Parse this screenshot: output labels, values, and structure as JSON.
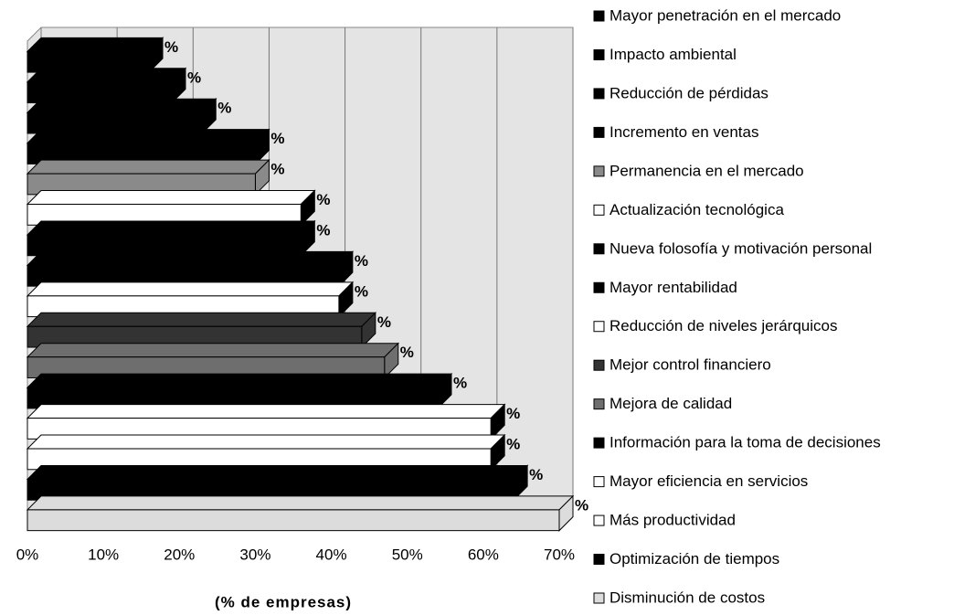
{
  "chart_data": {
    "type": "bar",
    "orientation": "horizontal",
    "x_label": "(% de empresas)",
    "categories": [
      "Mayor penetración en el mercado",
      "Impacto ambiental",
      "Reducción de pérdidas",
      "Incremento en ventas",
      "Permanencia en el mercado",
      "Actualización tecnológica",
      "Nueva folosofía y motivación personal",
      "Mayor rentabilidad",
      "Reducción de niveles jerárquicos",
      "Mejor control financiero",
      "Mejora de calidad",
      "Información para la toma de decisiones",
      "Mayor eficiencia en servicios",
      "Más productividad",
      "Optimización de tiempos",
      "Disminución de costos"
    ],
    "values": [
      16,
      19,
      23,
      30,
      30,
      36,
      36,
      41,
      41,
      44,
      47,
      54,
      61,
      61,
      64,
      70
    ],
    "value_labels": [
      "%",
      "%",
      "%",
      "%",
      "%",
      "%",
      "%",
      "%",
      "%",
      "%",
      "%",
      "%",
      "%",
      "%",
      "%",
      "%"
    ],
    "colors": [
      "#000000",
      "#000000",
      "#000000",
      "#000000",
      "#8a8a8a",
      "#ffffff",
      "#000000",
      "#000000",
      "#ffffff",
      "#333333",
      "#6e6e6e",
      "#000000",
      "#ffffff",
      "#ffffff",
      "#000000",
      "#dcdcdc"
    ],
    "xlim": [
      0,
      70
    ],
    "xticks": [
      {
        "value": 0,
        "label": "0%"
      },
      {
        "value": 10,
        "label": "10%"
      },
      {
        "value": 20,
        "label": "20%"
      },
      {
        "value": 30,
        "label": "30%"
      },
      {
        "value": 40,
        "label": "40%"
      },
      {
        "value": 50,
        "label": "50%"
      },
      {
        "value": 60,
        "label": "60%"
      },
      {
        "value": 70,
        "label": "70%"
      }
    ],
    "grid": true
  }
}
